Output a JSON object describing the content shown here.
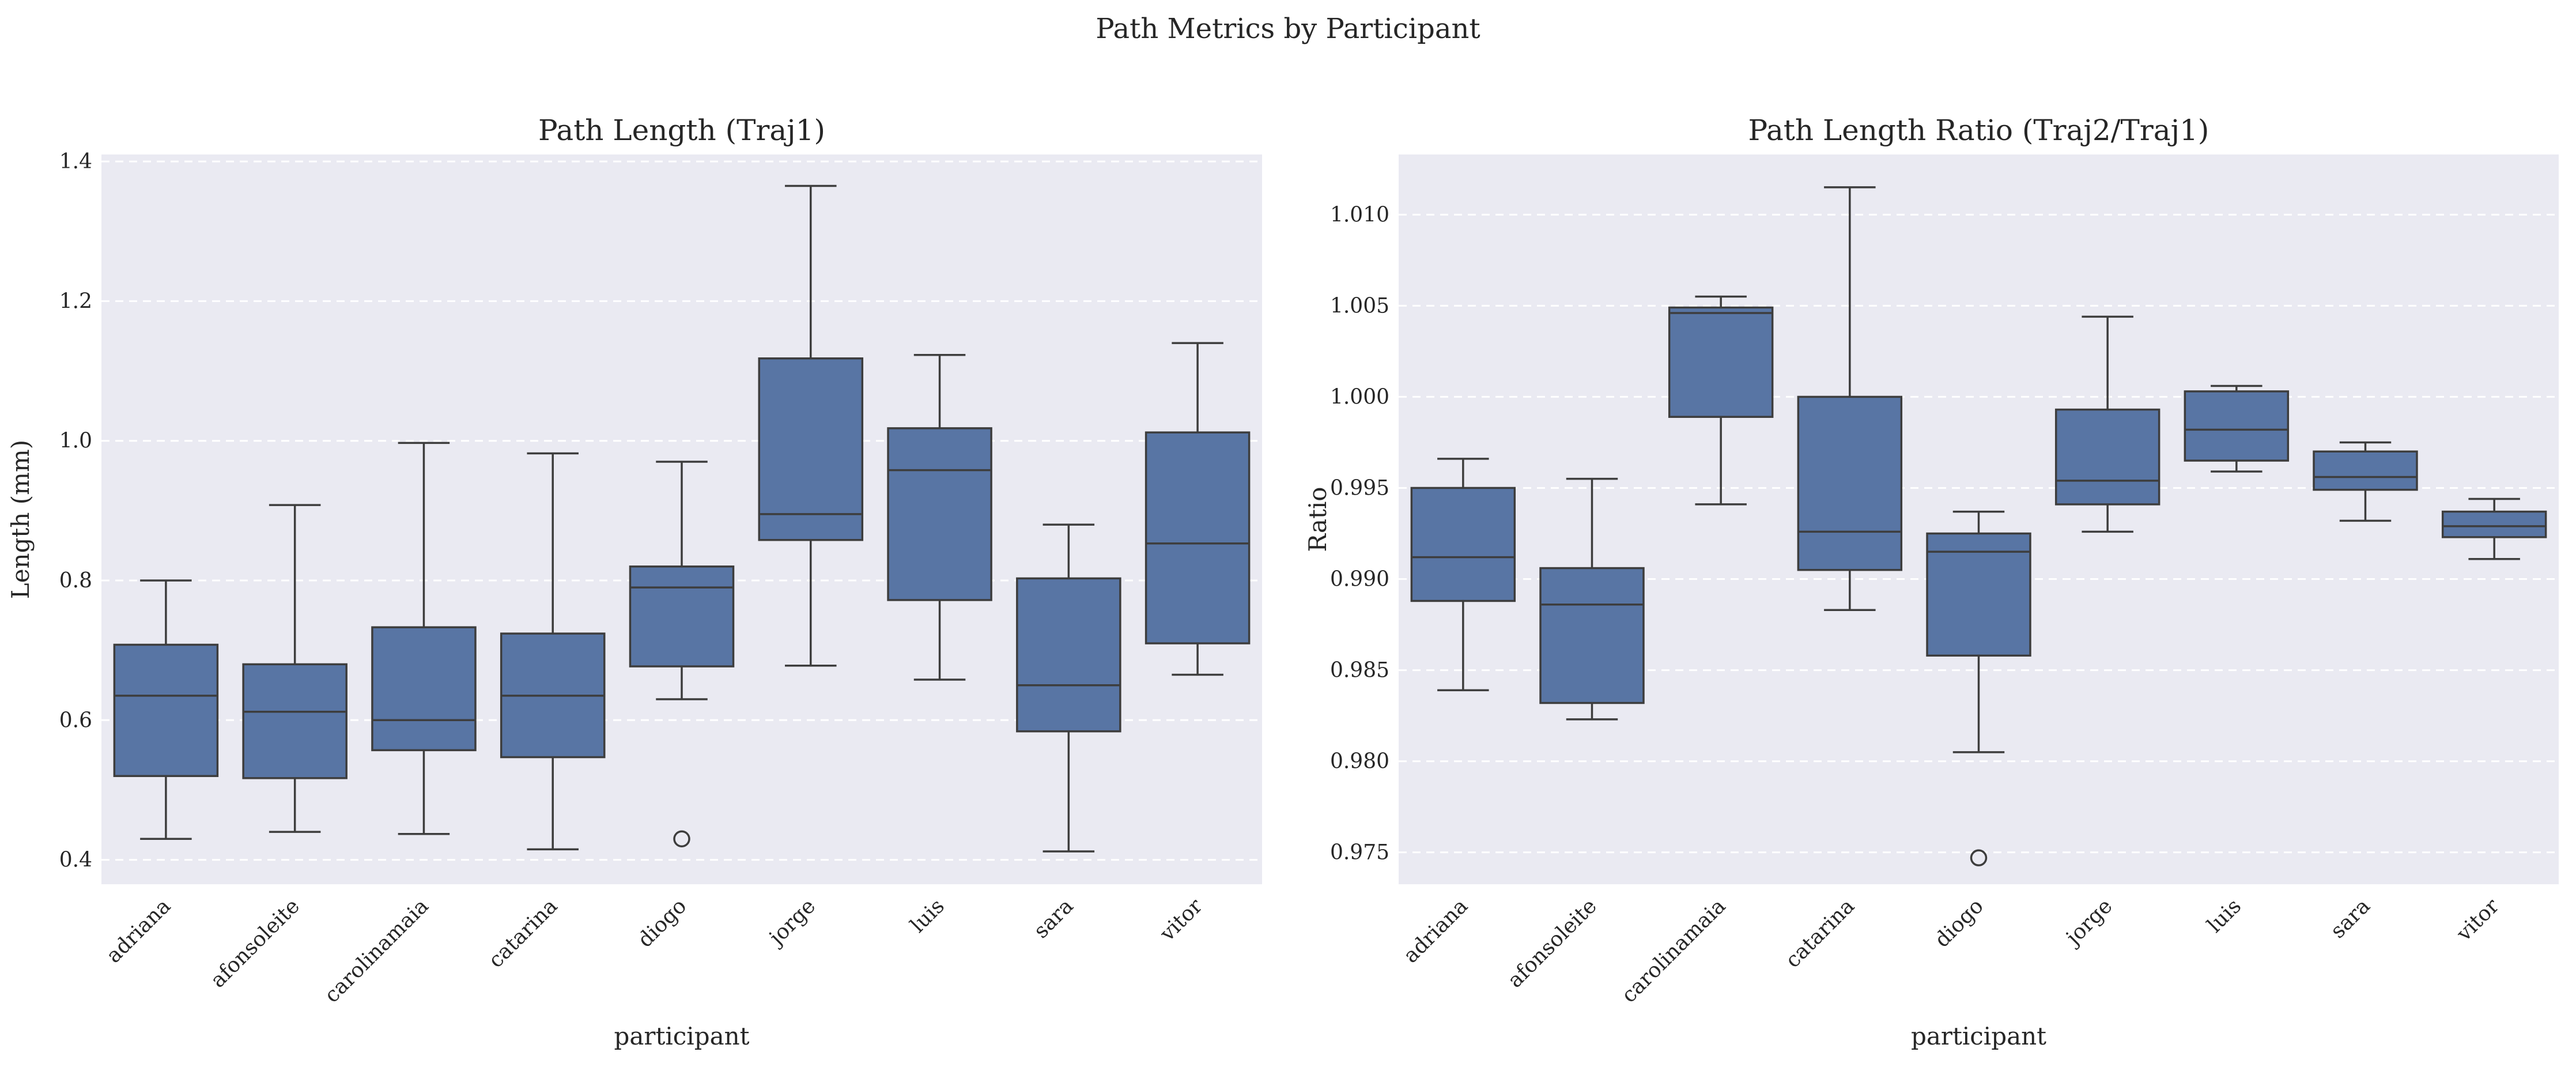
{
  "figure": {
    "suptitle": "Path Metrics by Participant"
  },
  "colors": {
    "box_fill": "#5875a4",
    "box_edge": "#3d3d3d",
    "axes_bg": "#eaeaf2",
    "grid": "#ffffff",
    "text": "#262626"
  },
  "chart_data": [
    {
      "type": "box",
      "title": "Path Length (Traj1)",
      "xlabel": "participant",
      "ylabel": "Length (mm)",
      "ylim": [
        0.365,
        1.41
      ],
      "yticks": [
        0.4,
        0.6,
        0.8,
        1.0,
        1.2,
        1.4
      ],
      "ytick_labels": [
        "0.4",
        "0.6",
        "0.8",
        "1.0",
        "1.2",
        "1.4"
      ],
      "grid": "horizontal dashed",
      "categories": [
        "adriana",
        "afonsoleite",
        "carolinamaia",
        "catarina",
        "diogo",
        "jorge",
        "luis",
        "sara",
        "vitor"
      ],
      "boxes": [
        {
          "whisker_low": 0.43,
          "q1": 0.52,
          "median": 0.635,
          "q3": 0.708,
          "whisker_high": 0.8,
          "outliers": []
        },
        {
          "whisker_low": 0.44,
          "q1": 0.517,
          "median": 0.612,
          "q3": 0.68,
          "whisker_high": 0.908,
          "outliers": []
        },
        {
          "whisker_low": 0.437,
          "q1": 0.557,
          "median": 0.6,
          "q3": 0.733,
          "whisker_high": 0.997,
          "outliers": []
        },
        {
          "whisker_low": 0.415,
          "q1": 0.547,
          "median": 0.635,
          "q3": 0.724,
          "whisker_high": 0.982,
          "outliers": []
        },
        {
          "whisker_low": 0.63,
          "q1": 0.677,
          "median": 0.79,
          "q3": 0.82,
          "whisker_high": 0.97,
          "outliers": [
            0.43
          ]
        },
        {
          "whisker_low": 0.678,
          "q1": 0.858,
          "median": 0.895,
          "q3": 1.118,
          "whisker_high": 1.365,
          "outliers": []
        },
        {
          "whisker_low": 0.658,
          "q1": 0.772,
          "median": 0.958,
          "q3": 1.018,
          "whisker_high": 1.123,
          "outliers": []
        },
        {
          "whisker_low": 0.412,
          "q1": 0.584,
          "median": 0.65,
          "q3": 0.803,
          "whisker_high": 0.88,
          "outliers": []
        },
        {
          "whisker_low": 0.665,
          "q1": 0.71,
          "median": 0.853,
          "q3": 1.012,
          "whisker_high": 1.14,
          "outliers": []
        }
      ]
    },
    {
      "type": "box",
      "title": "Path Length Ratio (Traj2/Traj1)",
      "xlabel": "participant",
      "ylabel": "Ratio",
      "ylim": [
        0.97325,
        1.0133
      ],
      "yticks": [
        0.975,
        0.98,
        0.985,
        0.99,
        0.995,
        1.0,
        1.005,
        1.01
      ],
      "ytick_labels": [
        "0.975",
        "0.980",
        "0.985",
        "0.990",
        "0.995",
        "1.000",
        "1.005",
        "1.010"
      ],
      "grid": "horizontal dashed",
      "categories": [
        "adriana",
        "afonsoleite",
        "carolinamaia",
        "catarina",
        "diogo",
        "jorge",
        "luis",
        "sara",
        "vitor"
      ],
      "boxes": [
        {
          "whisker_low": 0.9839,
          "q1": 0.9888,
          "median": 0.9912,
          "q3": 0.995,
          "whisker_high": 0.9966,
          "outliers": []
        },
        {
          "whisker_low": 0.9823,
          "q1": 0.9832,
          "median": 0.9886,
          "q3": 0.9906,
          "whisker_high": 0.9955,
          "outliers": []
        },
        {
          "whisker_low": 0.9941,
          "q1": 0.9989,
          "median": 1.0046,
          "q3": 1.0049,
          "whisker_high": 1.0055,
          "outliers": []
        },
        {
          "whisker_low": 0.9883,
          "q1": 0.9905,
          "median": 0.9926,
          "q3": 1.0,
          "whisker_high": 1.0115,
          "outliers": []
        },
        {
          "whisker_low": 0.9805,
          "q1": 0.9858,
          "median": 0.9915,
          "q3": 0.9925,
          "whisker_high": 0.9937,
          "outliers": [
            0.9747
          ]
        },
        {
          "whisker_low": 0.9926,
          "q1": 0.9941,
          "median": 0.9954,
          "q3": 0.9993,
          "whisker_high": 1.0044,
          "outliers": []
        },
        {
          "whisker_low": 0.9959,
          "q1": 0.9965,
          "median": 0.9982,
          "q3": 1.0003,
          "whisker_high": 1.0006,
          "outliers": []
        },
        {
          "whisker_low": 0.9932,
          "q1": 0.9949,
          "median": 0.9956,
          "q3": 0.997,
          "whisker_high": 0.9975,
          "outliers": []
        },
        {
          "whisker_low": 0.9911,
          "q1": 0.9923,
          "median": 0.9929,
          "q3": 0.9937,
          "whisker_high": 0.9944,
          "outliers": []
        }
      ]
    }
  ]
}
